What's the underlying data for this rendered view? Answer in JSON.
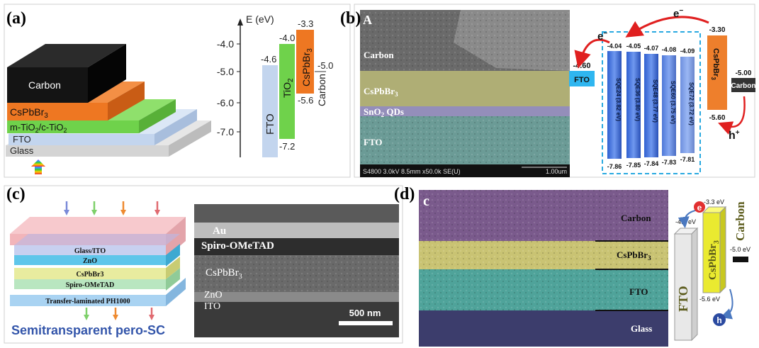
{
  "panels": {
    "a": {
      "label": "(a)",
      "stack": {
        "carbon": "Carbon",
        "cspbbr3": "CsPbBr",
        "cspbbr3_sub": "3",
        "tio2": "m-TiO",
        "tio2_sub": "2",
        "tio2_rest": "/c-TiO",
        "tio2_sub2": "2",
        "fto": "FTO",
        "glass": "Glass"
      },
      "axis_title": "E (eV)",
      "ticks": [
        "-4.0",
        "-5.0",
        "-6.0",
        "-7.0"
      ],
      "bands": {
        "fto_top": "-4.6",
        "fto_label": "FTO",
        "tio2_top": "-4.0",
        "tio2_bottom": "-7.2",
        "tio2_label": "TiO",
        "tio2_sub": "2",
        "cs_top": "-3.3",
        "cs_bottom": "-5.6",
        "cs_label": "CsPbBr",
        "cs_sub": "3",
        "carbon_value": "-5.0",
        "carbon_label": "Carbon"
      },
      "colors": {
        "carbon": "#141414",
        "cspbbr3": "#ee7722",
        "tio2": "#6fd24b",
        "fto": "#c3d5ee",
        "glass": "#d4d4d4"
      }
    },
    "b": {
      "label": "(b)",
      "sem": {
        "letter": "A",
        "carbon": "Carbon",
        "cspbbr3": "CsPbBr",
        "cspbbr3_sub": "3",
        "sno2": "SnO",
        "sno2_sub": "2",
        "sno2_rest": " QDs",
        "fto": "FTO",
        "footer_left": "S4800 3.0kV 8.5mm x50.0k SE(U)",
        "footer_right": "1.00um"
      },
      "electron": "e",
      "electron_left": "e",
      "hole": "h",
      "fto_box": {
        "label": "FTO",
        "value": "-4.60"
      },
      "sqe_bars": [
        {
          "label": "SQE24 (3.82 eV)",
          "top": "-4.04",
          "bottom": "-7.86"
        },
        {
          "label": "SQE36 (3.80 eV)",
          "top": "-4.05",
          "bottom": "-7.85"
        },
        {
          "label": "SQE48 (3.77 eV)",
          "top": "-4.07",
          "bottom": "-7.84"
        },
        {
          "label": "SQE60 (3.75 eV)",
          "top": "-4.08",
          "bottom": "-7.83"
        },
        {
          "label": "SQE72 (3.72 eV)",
          "top": "-4.09",
          "bottom": "-7.81"
        }
      ],
      "cs_box": {
        "label": "CsPbBr",
        "sub": "3",
        "top": "-3.30",
        "bottom": "-5.60"
      },
      "carbon_box": {
        "label": "Carbon",
        "value": "-5.00"
      }
    },
    "c": {
      "label": "(c)",
      "layers": [
        "Glass/ITO",
        "ZnO",
        "CsPbBr3",
        "Spiro-OMeTAD",
        "Transfer-laminated PH1000"
      ],
      "caption": "Semitransparent pero-SC",
      "sem": {
        "au": "Au",
        "spiro": "Spiro-OMeTAD",
        "cs": "CsPbBr",
        "cs_sub": "3",
        "zno": "ZnO",
        "ito": "ITO",
        "scale": "500 nm"
      }
    },
    "d": {
      "label": "(d)",
      "sem": {
        "letter": "c",
        "carbon": "Carbon",
        "cs": "CsPbBr",
        "cs_sub": "3",
        "fto": "FTO",
        "glass": "Glass"
      },
      "diagram": {
        "fto_value": "-4.6 eV",
        "fto_label": "FTO",
        "cs_top": "-3.3 eV",
        "cs_bottom": "-5.6 eV",
        "cs_label": "CsPbBr",
        "cs_sub": "3",
        "carbon_label": "Carbon",
        "carbon_value": "-5.0 eV",
        "electron": "e",
        "hole": "h"
      }
    }
  }
}
